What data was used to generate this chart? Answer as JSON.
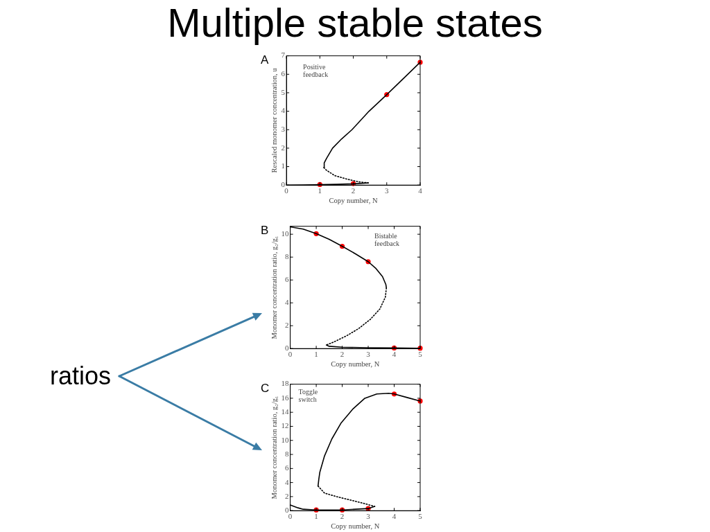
{
  "chart_data": [
    {
      "type": "line",
      "title": "Multiple stable states",
      "xlabel": "Copy number, N",
      "ylabel": "Rescaled monomer concentration, u",
      "annotations": [
        "A",
        "Positive feedback"
      ],
      "xlim": [
        0,
        4
      ],
      "xticks": [
        0,
        1,
        2,
        3,
        4
      ],
      "ylim": [
        0,
        7
      ],
      "yticks": [
        0,
        1,
        2,
        3,
        4,
        5,
        6,
        7
      ],
      "series": [
        {
          "type": "line",
          "color": "#000000",
          "marker": "none",
          "line_style": "solid",
          "x": [
            1.12,
            1.13,
            1.2,
            1.38,
            1.65,
            1.96,
            2.47,
            3.0,
            3.6,
            4.0
          ],
          "values": [
            0.95,
            1.2,
            1.45,
            2.0,
            2.5,
            3.0,
            4.0,
            4.9,
            5.95,
            6.65
          ]
        },
        {
          "type": "line",
          "color": "#000000",
          "marker": "none",
          "line_style": "dotted",
          "x": [
            1.12,
            1.2,
            1.45,
            1.82,
            2.18,
            2.45
          ],
          "values": [
            0.95,
            0.8,
            0.51,
            0.32,
            0.17,
            0.12
          ]
        },
        {
          "type": "line",
          "color": "#000000",
          "marker": "none",
          "line_style": "solid",
          "x": [
            0,
            0.5,
            1,
            1.5,
            2,
            2.45
          ],
          "values": [
            0,
            0.01,
            0.02,
            0.04,
            0.07,
            0.12
          ]
        },
        {
          "type": "scatter",
          "color": "#ff0000",
          "marker": "circle",
          "x": [
            1,
            2,
            3,
            4
          ],
          "values": [
            0.03,
            0.08,
            4.9,
            6.65
          ]
        }
      ]
    },
    {
      "type": "line",
      "xlabel": "Copy number, N",
      "ylabel": "Monomer concentration ratio, g₂/g₁",
      "annotations": [
        "B",
        "Bistable feedback",
        "ratios"
      ],
      "xlim": [
        0,
        5
      ],
      "xticks": [
        0,
        1,
        2,
        3,
        4,
        5
      ],
      "ylim": [
        0,
        10.7
      ],
      "yticks": [
        0,
        2,
        4,
        6,
        8,
        10
      ],
      "series": [
        {
          "type": "line",
          "color": "#000000",
          "marker": "none",
          "line_style": "solid",
          "x": [
            0,
            0.5,
            1,
            1.5,
            2,
            2.5,
            3,
            3.3,
            3.55,
            3.68,
            3.7
          ],
          "values": [
            10.65,
            10.45,
            10.05,
            9.55,
            8.95,
            8.3,
            7.6,
            7.0,
            6.3,
            5.6,
            5.3
          ]
        },
        {
          "type": "line",
          "color": "#000000",
          "marker": "none",
          "line_style": "dotted",
          "x": [
            3.7,
            3.66,
            3.45,
            3.08,
            2.62,
            2.17,
            1.71,
            1.39
          ],
          "values": [
            5.3,
            4.5,
            3.47,
            2.55,
            1.73,
            1.12,
            0.61,
            0.31
          ]
        },
        {
          "type": "line",
          "color": "#000000",
          "marker": "none",
          "line_style": "solid",
          "x": [
            1.39,
            1.5,
            2,
            3,
            4,
            5
          ],
          "values": [
            0.31,
            0.2,
            0.12,
            0.07,
            0.05,
            0.03
          ]
        },
        {
          "type": "scatter",
          "color": "#ff0000",
          "marker": "circle",
          "x": [
            1,
            2,
            3,
            4,
            5
          ],
          "values": [
            10.05,
            8.95,
            7.6,
            0.05,
            0.03
          ]
        }
      ]
    },
    {
      "type": "line",
      "xlabel": "Copy number, N",
      "ylabel": "Monomer concentration ratio, g₂/g₁",
      "annotations": [
        "C",
        "Toggle switch"
      ],
      "xlim": [
        0,
        5
      ],
      "xticks": [
        0,
        1,
        2,
        3,
        4,
        5
      ],
      "ylim": [
        0,
        18
      ],
      "yticks": [
        0,
        2,
        4,
        6,
        8,
        10,
        12,
        14,
        16,
        18
      ],
      "series": [
        {
          "type": "line",
          "color": "#000000",
          "marker": "none",
          "line_style": "solid",
          "x": [
            1.07,
            1.1,
            1.14,
            1.32,
            1.6,
            1.96,
            2.42,
            2.87,
            3.33,
            3.79,
            4,
            4.5,
            5
          ],
          "values": [
            3.5,
            4.5,
            5.5,
            7.8,
            10.2,
            12.5,
            14.5,
            16.0,
            16.6,
            16.7,
            16.6,
            16.1,
            15.6
          ]
        },
        {
          "type": "line",
          "color": "#000000",
          "marker": "none",
          "line_style": "dotted",
          "x": [
            1.07,
            1.32,
            1.78,
            2.33,
            2.87,
            3.25
          ],
          "values": [
            3.5,
            2.5,
            2.0,
            1.5,
            1.0,
            0.6
          ]
        },
        {
          "type": "line",
          "color": "#000000",
          "marker": "none",
          "line_style": "solid",
          "x": [
            0,
            0.3,
            0.5,
            1,
            2,
            3,
            3.25
          ],
          "values": [
            0.8,
            0.4,
            0.2,
            0.1,
            0.1,
            0.3,
            0.6
          ]
        },
        {
          "type": "scatter",
          "color": "#ff0000",
          "marker": "circle",
          "x": [
            1,
            2,
            3,
            4,
            5
          ],
          "values": [
            0.1,
            0.1,
            0.3,
            16.6,
            15.6
          ]
        }
      ]
    }
  ]
}
